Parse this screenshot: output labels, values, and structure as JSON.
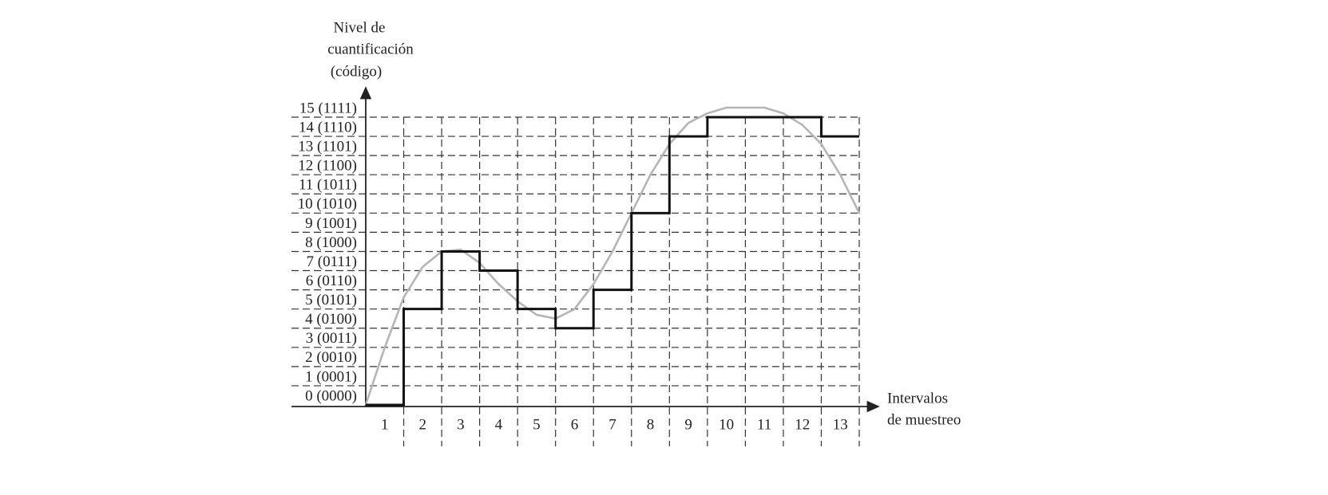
{
  "chart_data": {
    "type": "step",
    "y_label_lines": [
      "Nivel de",
      "cuantificación",
      "(código)"
    ],
    "x_label_lines": [
      "Intervalos",
      "de muestreo"
    ],
    "categories": [
      "1",
      "2",
      "3",
      "4",
      "5",
      "6",
      "7",
      "8",
      "9",
      "10",
      "11",
      "12",
      "13"
    ],
    "values": [
      0,
      5,
      8,
      7,
      5,
      4,
      6,
      10,
      14,
      15,
      15,
      15,
      14
    ],
    "color": "#111111",
    "curve": {
      "color": "#b5b5b5",
      "x": [
        0,
        0.5,
        1,
        1.5,
        2,
        2.5,
        3,
        3.5,
        4,
        4.5,
        5,
        5.5,
        6,
        6.5,
        7,
        7.5,
        8,
        8.5,
        9,
        9.5,
        10,
        10.5,
        11,
        11.5,
        12,
        12.5,
        13
      ],
      "values": [
        0,
        3,
        5.6,
        7.2,
        8,
        8.1,
        7.4,
        6.3,
        5.4,
        4.7,
        4.5,
        5,
        6.3,
        8,
        10,
        12,
        13.6,
        14.7,
        15.2,
        15.5,
        15.5,
        15.5,
        15.2,
        14.6,
        13.6,
        12,
        10
      ]
    },
    "xlim": [
      0,
      13
    ],
    "ylim": [
      0,
      15
    ],
    "yticks": [
      {
        "value": 0,
        "label": "0 (0000)"
      },
      {
        "value": 1,
        "label": "1 (0001)"
      },
      {
        "value": 2,
        "label": "2 (0010)"
      },
      {
        "value": 3,
        "label": "3 (0011)"
      },
      {
        "value": 4,
        "label": "4 (0100)"
      },
      {
        "value": 5,
        "label": "5 (0101)"
      },
      {
        "value": 6,
        "label": "6 (0110)"
      },
      {
        "value": 7,
        "label": "7 (0111)"
      },
      {
        "value": 8,
        "label": "8 (1000)"
      },
      {
        "value": 9,
        "label": "9 (1001)"
      },
      {
        "value": 10,
        "label": "10 (1010)"
      },
      {
        "value": 11,
        "label": "11 (1011)"
      },
      {
        "value": 12,
        "label": "12 (1100)"
      },
      {
        "value": 13,
        "label": "13 (1101)"
      },
      {
        "value": 14,
        "label": "14 (1110)"
      },
      {
        "value": 15,
        "label": "15 (1111)"
      }
    ],
    "grid": true
  }
}
